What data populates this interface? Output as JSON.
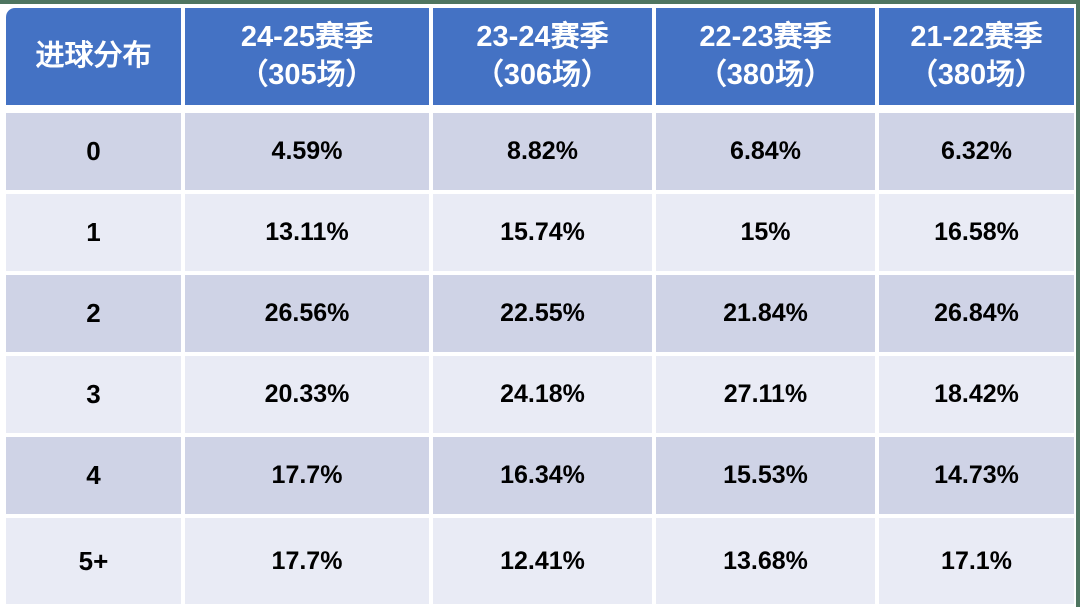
{
  "chart_data": {
    "type": "table",
    "title": "进球分布",
    "columns": [
      "进球分布",
      "24-25赛季（305场）",
      "23-24赛季（306场）",
      "22-23赛季（380场）",
      "21-22赛季（380场）"
    ],
    "rows": [
      {
        "label": "0",
        "values": [
          "4.59%",
          "8.82%",
          "6.84%",
          "6.32%"
        ]
      },
      {
        "label": "1",
        "values": [
          "13.11%",
          "15.74%",
          "15%",
          "16.58%"
        ]
      },
      {
        "label": "2",
        "values": [
          "26.56%",
          "22.55%",
          "21.84%",
          "26.84%"
        ]
      },
      {
        "label": "3",
        "values": [
          "20.33%",
          "24.18%",
          "27.11%",
          "18.42%"
        ]
      },
      {
        "label": "4",
        "values": [
          "17.7%",
          "16.34%",
          "15.53%",
          "14.73%"
        ]
      },
      {
        "label": "5+",
        "values": [
          "17.7%",
          "12.41%",
          "13.68%",
          "17.1%"
        ]
      }
    ]
  },
  "header": {
    "col0": "进球分布",
    "seasons": [
      {
        "line1": "24-25赛季",
        "line2": "（305场）"
      },
      {
        "line1": "23-24赛季",
        "line2": "（306场）"
      },
      {
        "line1": "22-23赛季",
        "line2": "（380场）"
      },
      {
        "line1": "21-22赛季",
        "line2": "（380场）"
      }
    ]
  },
  "colors": {
    "header_bg": "#4472C4",
    "header_text": "#FFFFFF",
    "row_dark": "#CFD3E6",
    "row_light": "#E9EBF5",
    "grid_gap": "#FFFFFF",
    "edge_strip": "#4E7560",
    "cell_text": "#000000"
  }
}
